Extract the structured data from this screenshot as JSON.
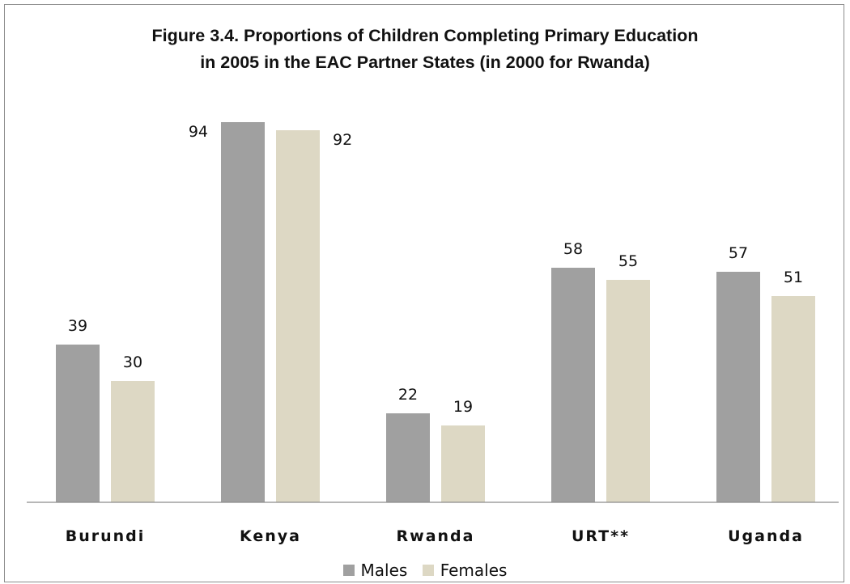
{
  "chart_data": {
    "type": "bar",
    "title": [
      "Figure 3.4. Proportions of Children Completing Primary Education",
      "in 2005 in the EAC Partner States (in 2000 for Rwanda)"
    ],
    "categories": [
      "Burundi",
      "Kenya",
      "Rwanda",
      "URT**",
      "Uganda"
    ],
    "series": [
      {
        "name": "Males",
        "values": [
          39,
          94,
          22,
          58,
          57
        ],
        "color": "#a0a0a0"
      },
      {
        "name": "Females",
        "values": [
          30,
          92,
          19,
          55,
          51
        ],
        "color": "#ddd8c4"
      }
    ],
    "ylim": [
      0,
      100
    ],
    "grid": false,
    "legend_position": "bottom",
    "data_labels": true
  }
}
